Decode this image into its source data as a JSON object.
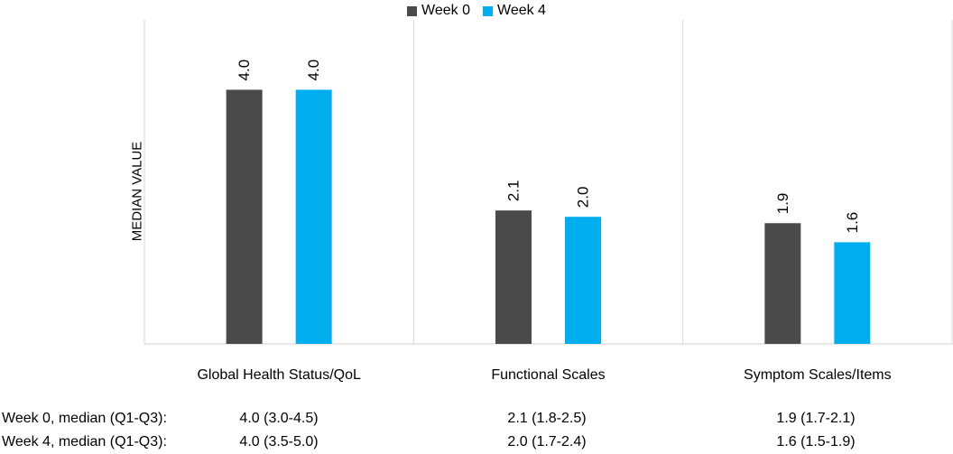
{
  "chart_data": {
    "type": "bar",
    "title": "",
    "xlabel": "",
    "ylabel": "MEDIAN VALUE",
    "ylim": [
      0,
      5.1
    ],
    "grid": false,
    "legend_position": "top-center",
    "categories": [
      "Global Health Status/QoL",
      "Functional Scales",
      "Symptom Scales/Items"
    ],
    "series": [
      {
        "name": "Week 0",
        "color": "#4a4a4a",
        "values": [
          4.0,
          2.1,
          1.9
        ],
        "labels": [
          "4.0",
          "2.1",
          "1.9"
        ]
      },
      {
        "name": "Week 4",
        "color": "#00aeef",
        "values": [
          4.0,
          2.0,
          1.6
        ],
        "labels": [
          "4.0",
          "2.0",
          "1.6"
        ]
      }
    ]
  },
  "stats_table": {
    "rows": [
      {
        "label": "Week 0, median (Q1-Q3):",
        "cells": [
          "4.0 (3.0-4.5)",
          "2.1 (1.8-2.5)",
          "1.9 (1.7-2.1)"
        ]
      },
      {
        "label": "Week 4, median (Q1-Q3):",
        "cells": [
          "4.0 (3.5-5.0)",
          "2.0 (1.7-2.4)",
          "1.6 (1.5-1.9)"
        ]
      }
    ]
  }
}
